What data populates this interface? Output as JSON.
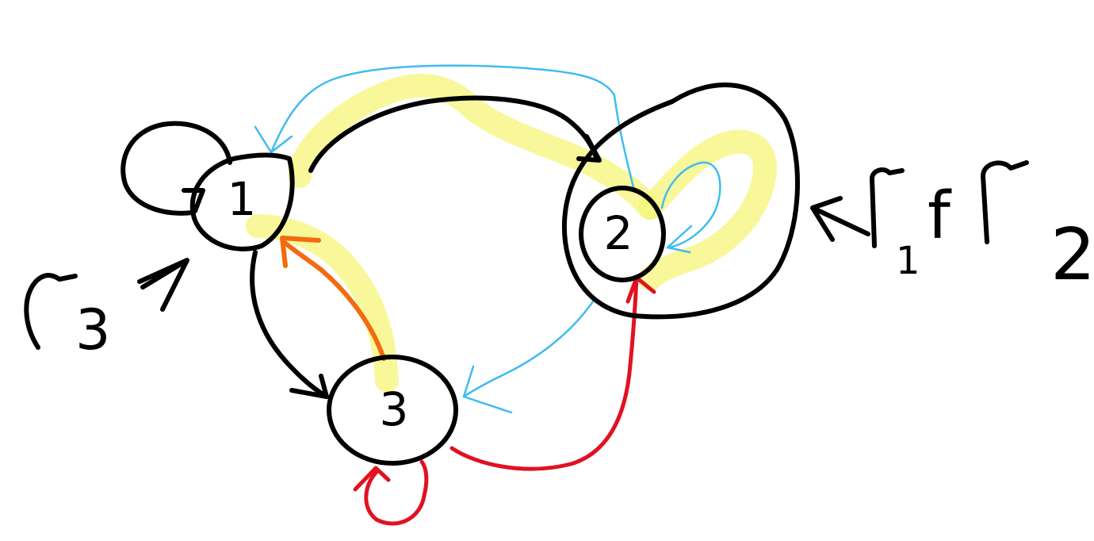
{
  "diagram": {
    "nodes": [
      {
        "id": "1",
        "label": "1"
      },
      {
        "id": "2",
        "label": "2"
      },
      {
        "id": "3",
        "label": "3"
      }
    ],
    "edges": [
      {
        "from": "1",
        "to": "1",
        "color": "black",
        "kind": "self-loop"
      },
      {
        "from": "1",
        "to": "2",
        "color": "black"
      },
      {
        "from": "1",
        "to": "3",
        "color": "black"
      },
      {
        "from": "2",
        "to": "1",
        "color": "blue"
      },
      {
        "from": "2",
        "to": "2",
        "color": "blue",
        "kind": "self-loop"
      },
      {
        "from": "2",
        "to": "3",
        "color": "blue"
      },
      {
        "from": "3",
        "to": "3",
        "color": "red",
        "kind": "self-loop"
      },
      {
        "from": "3",
        "to": "2",
        "color": "red"
      },
      {
        "from": "3",
        "to": "1",
        "color": "orange"
      }
    ],
    "annotations": {
      "left": {
        "symbol": "Γ",
        "subscript": "3"
      },
      "right": {
        "symbol1": "Γ",
        "sub1": "1",
        "separator": "f",
        "symbol2": "Γ",
        "sub2": "2"
      }
    },
    "colors": {
      "ink": "#000000",
      "blue": "#3fbcf0",
      "red": "#e01222",
      "orange": "#f36b10",
      "highlight": "#f6f57a"
    }
  }
}
